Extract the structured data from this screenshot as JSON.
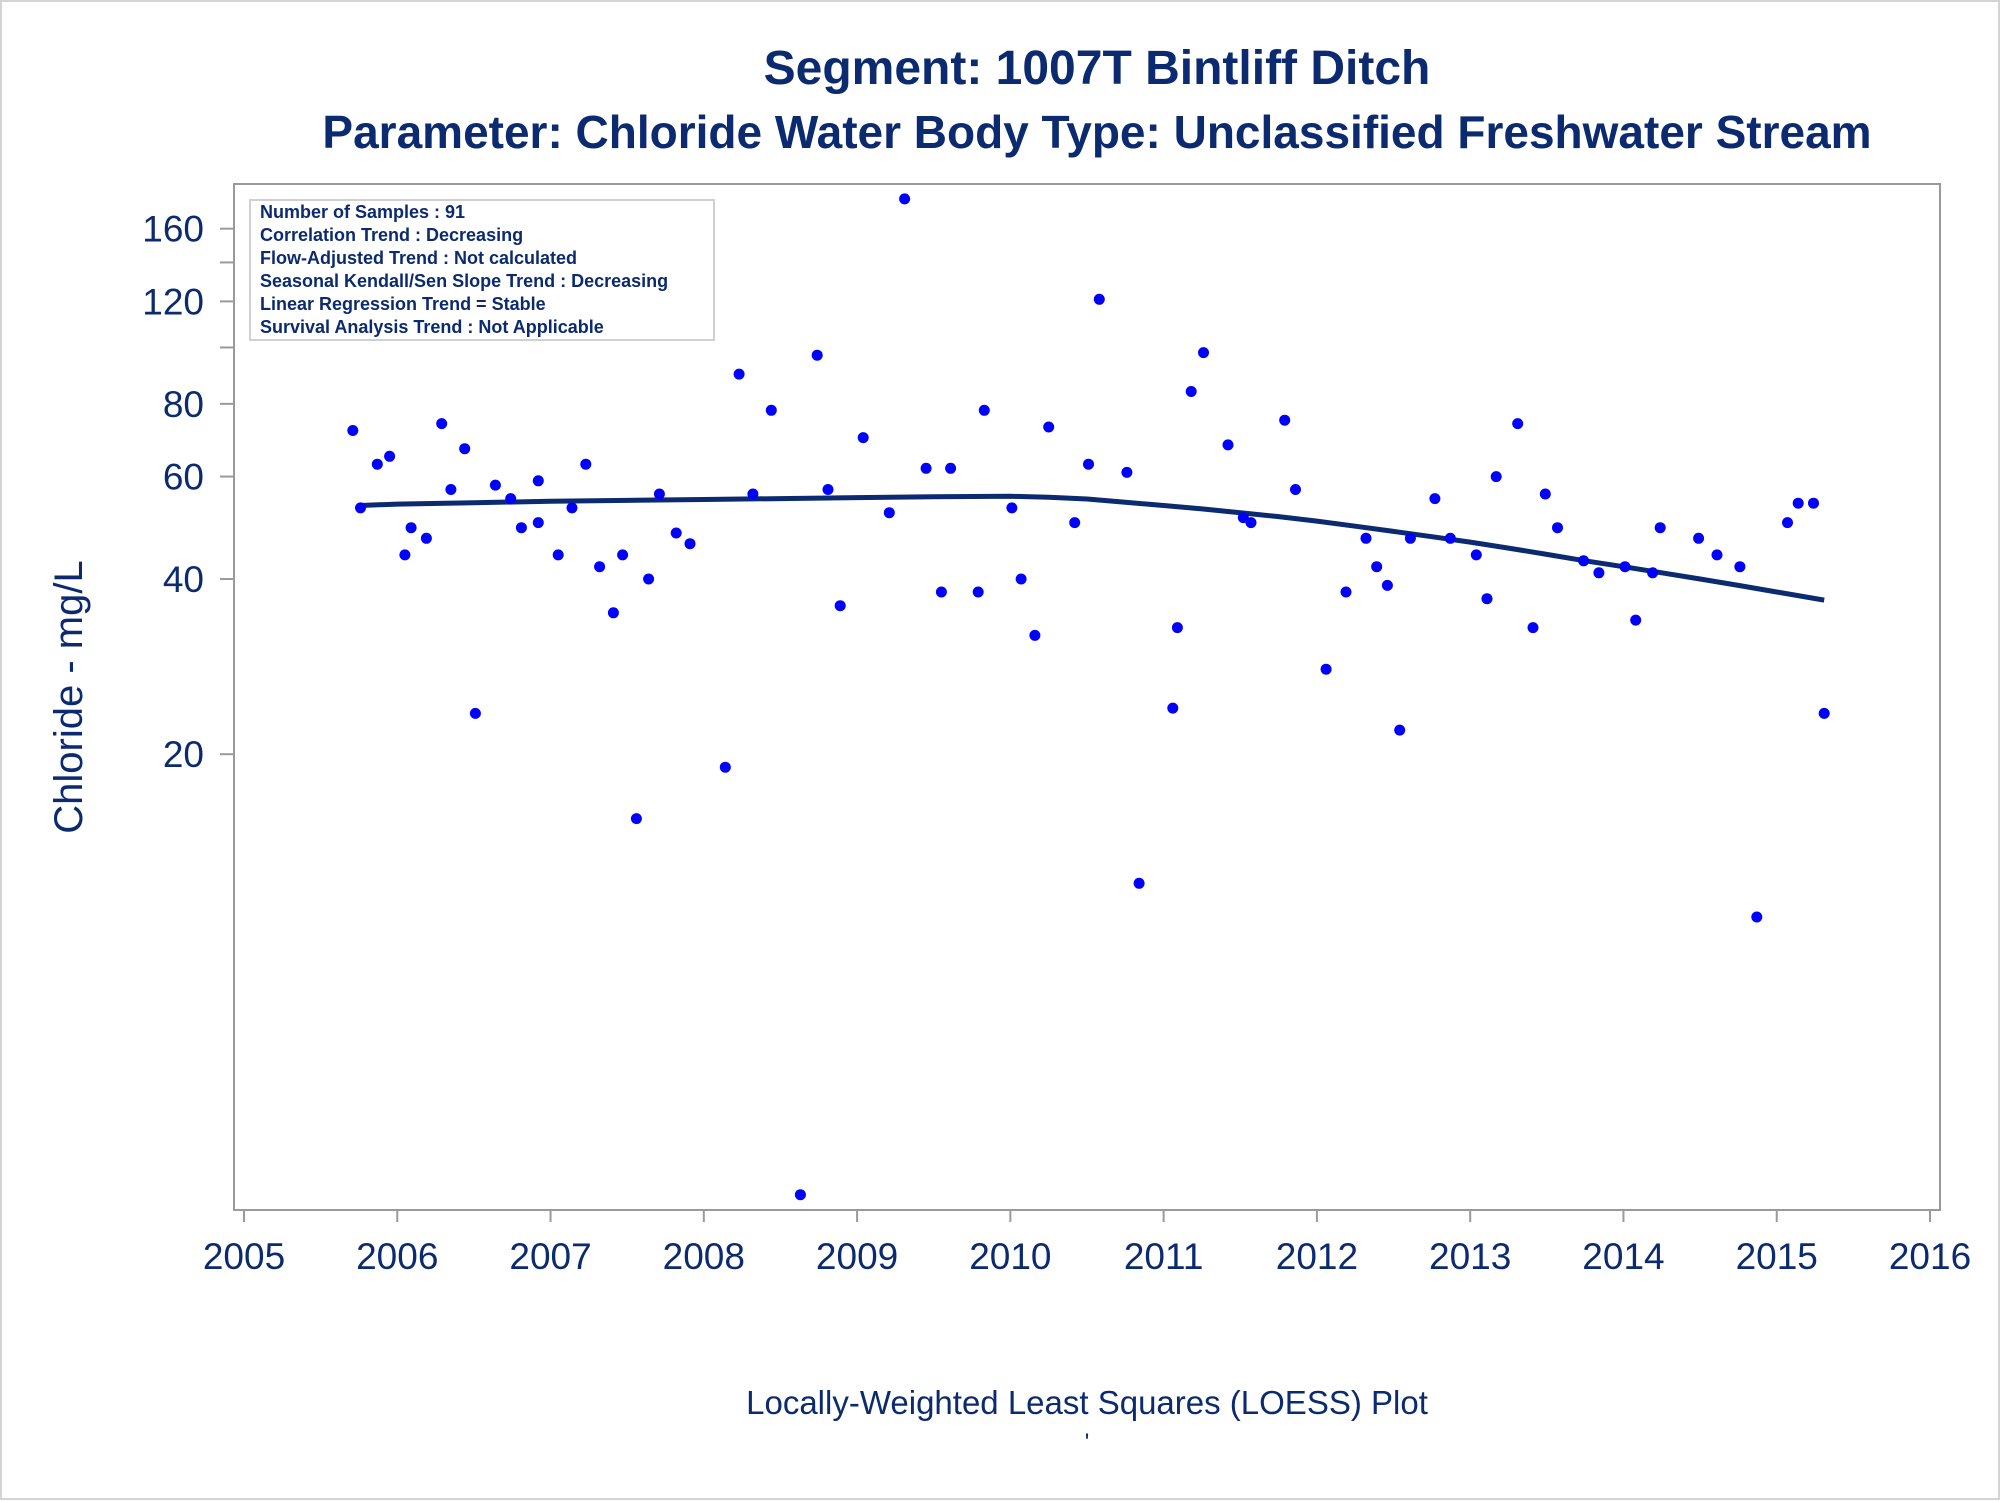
{
  "chart_data": {
    "type": "scatter",
    "title": "Segment: 1007T  Bintliff Ditch",
    "subtitle": "Parameter: Chloride   Water Body Type: Unclassified Freshwater Stream",
    "xlabel": "",
    "ylabel": "Chloride - mg/L",
    "footnote": "Locally-Weighted Least Squares (LOESS) Plot",
    "footnote_mark": "'",
    "y_scale": "log",
    "xlim": [
      2005,
      2016
    ],
    "ylim": [
      3.4,
      185
    ],
    "x_ticks": [
      "2005",
      "2006",
      "2007",
      "2008",
      "2009",
      "2010",
      "2011",
      "2012",
      "2013",
      "2014",
      "2015",
      "2016"
    ],
    "y_ticks": [
      "20",
      "40",
      "60",
      "80",
      "120",
      "160"
    ],
    "y_minor_ticks": [
      100,
      140
    ],
    "grid": false,
    "stats_box": {
      "placement": "top-left",
      "lines": [
        "Number of Samples : 91",
        "Correlation Trend : Decreasing",
        "Flow-Adjusted Trend : Not calculated",
        "Seasonal Kendall/Sen Slope Trend : Decreasing",
        "Linear Regression Trend = Stable",
        "Survival Analysis Trend : Not Applicable"
      ]
    },
    "series": [
      {
        "type": "scatter",
        "color": "#0000ff",
        "points": [
          [
            2005.71,
            72
          ],
          [
            2005.76,
            53
          ],
          [
            2005.87,
            63
          ],
          [
            2005.95,
            65
          ],
          [
            2006.05,
            44
          ],
          [
            2006.09,
            49
          ],
          [
            2006.19,
            47
          ],
          [
            2006.29,
            74
          ],
          [
            2006.35,
            57
          ],
          [
            2006.44,
            67
          ],
          [
            2006.51,
            23.5
          ],
          [
            2006.64,
            58
          ],
          [
            2006.74,
            55
          ],
          [
            2006.81,
            49
          ],
          [
            2006.92,
            59
          ],
          [
            2006.92,
            50
          ],
          [
            2007.05,
            44
          ],
          [
            2007.14,
            53
          ],
          [
            2007.23,
            63
          ],
          [
            2007.32,
            42
          ],
          [
            2007.41,
            35
          ],
          [
            2007.47,
            44
          ],
          [
            2007.56,
            15.5
          ],
          [
            2007.64,
            40
          ],
          [
            2007.71,
            56
          ],
          [
            2007.82,
            48
          ],
          [
            2007.91,
            46
          ],
          [
            2008.14,
            19
          ],
          [
            2008.23,
            90
          ],
          [
            2008.32,
            56
          ],
          [
            2008.44,
            78
          ],
          [
            2008.63,
            3.5
          ],
          [
            2008.74,
            97
          ],
          [
            2008.81,
            57
          ],
          [
            2008.89,
            36
          ],
          [
            2009.04,
            70
          ],
          [
            2009.21,
            52
          ],
          [
            2009.31,
            180
          ],
          [
            2009.45,
            62
          ],
          [
            2009.55,
            38
          ],
          [
            2009.61,
            62
          ],
          [
            2009.79,
            38
          ],
          [
            2009.83,
            78
          ],
          [
            2010.01,
            53
          ],
          [
            2010.07,
            40
          ],
          [
            2010.16,
            32
          ],
          [
            2010.25,
            73
          ],
          [
            2010.42,
            50
          ],
          [
            2010.51,
            63
          ],
          [
            2010.58,
            121
          ],
          [
            2010.76,
            61
          ],
          [
            2010.84,
            12
          ],
          [
            2011.06,
            24
          ],
          [
            2011.09,
            33
          ],
          [
            2011.18,
            84
          ],
          [
            2011.26,
            98
          ],
          [
            2011.42,
            68
          ],
          [
            2011.52,
            51
          ],
          [
            2011.57,
            50
          ],
          [
            2011.79,
            75
          ],
          [
            2011.86,
            57
          ],
          [
            2012.06,
            28
          ],
          [
            2012.19,
            38
          ],
          [
            2012.32,
            47
          ],
          [
            2012.39,
            42
          ],
          [
            2012.46,
            39
          ],
          [
            2012.54,
            22
          ],
          [
            2012.61,
            47
          ],
          [
            2012.77,
            55
          ],
          [
            2012.87,
            47
          ],
          [
            2013.04,
            44
          ],
          [
            2013.11,
            37
          ],
          [
            2013.17,
            60
          ],
          [
            2013.31,
            74
          ],
          [
            2013.41,
            33
          ],
          [
            2013.49,
            56
          ],
          [
            2013.57,
            49
          ],
          [
            2013.74,
            43
          ],
          [
            2013.84,
            41
          ],
          [
            2014.01,
            42
          ],
          [
            2014.08,
            34
          ],
          [
            2014.19,
            41
          ],
          [
            2014.24,
            49
          ],
          [
            2014.49,
            47
          ],
          [
            2014.61,
            44
          ],
          [
            2014.76,
            42
          ],
          [
            2014.87,
            10.5
          ],
          [
            2015.07,
            50
          ],
          [
            2015.14,
            54
          ],
          [
            2015.24,
            54
          ],
          [
            2015.31,
            23.5
          ]
        ]
      },
      {
        "type": "line",
        "color": "#0b2a6f",
        "points": [
          [
            2005.76,
            53.5
          ],
          [
            2006.0,
            53.8
          ],
          [
            2006.5,
            54.1
          ],
          [
            2007.0,
            54.4
          ],
          [
            2007.5,
            54.6
          ],
          [
            2008.0,
            54.8
          ],
          [
            2008.5,
            55.0
          ],
          [
            2009.0,
            55.2
          ],
          [
            2009.5,
            55.4
          ],
          [
            2010.0,
            55.5
          ],
          [
            2010.25,
            55.3
          ],
          [
            2010.5,
            54.9
          ],
          [
            2010.75,
            54.2
          ],
          [
            2011.0,
            53.5
          ],
          [
            2011.25,
            52.8
          ],
          [
            2011.5,
            52.0
          ],
          [
            2011.75,
            51.2
          ],
          [
            2012.0,
            50.3
          ],
          [
            2012.25,
            49.3
          ],
          [
            2012.5,
            48.3
          ],
          [
            2012.75,
            47.3
          ],
          [
            2013.0,
            46.3
          ],
          [
            2013.25,
            45.2
          ],
          [
            2013.5,
            44.1
          ],
          [
            2013.75,
            43.0
          ],
          [
            2014.0,
            42.0
          ],
          [
            2014.25,
            41.0
          ],
          [
            2014.5,
            40.0
          ],
          [
            2014.75,
            39.0
          ],
          [
            2015.0,
            38.0
          ],
          [
            2015.31,
            36.8
          ]
        ]
      }
    ]
  }
}
